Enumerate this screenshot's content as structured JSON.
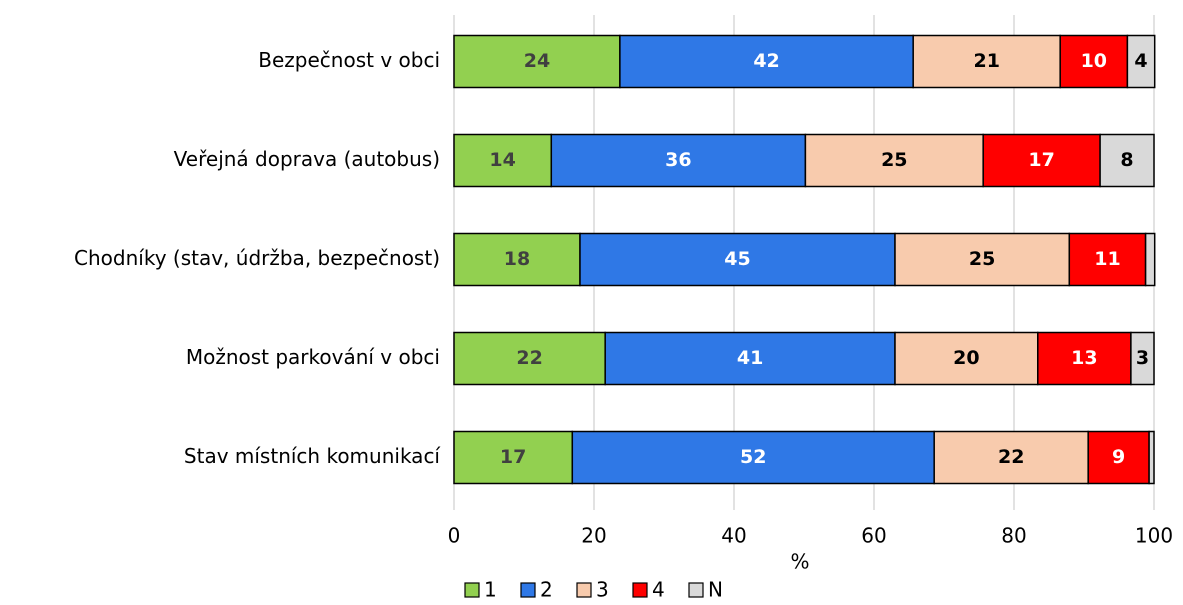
{
  "chart_data": {
    "type": "stacked_barh",
    "categories": [
      "Bezpečnost v obci",
      "Veřejná doprava (autobus)",
      "Chodníky (stav, údržba, bezpečnost)",
      "Možnost parkování v obci",
      "Stav místních komunikací"
    ],
    "series": [
      {
        "name": "1",
        "color": "#92d050",
        "label_color": "#404040",
        "values": [
          23.7,
          13.9,
          18.0,
          21.6,
          16.9
        ],
        "value_labels": [
          24,
          14,
          18,
          22,
          17
        ]
      },
      {
        "name": "2",
        "color": "#2f78e6",
        "label_color": "#ffffff",
        "values": [
          41.9,
          36.3,
          45.0,
          41.4,
          51.7
        ],
        "value_labels": [
          42,
          36,
          45,
          41,
          52
        ]
      },
      {
        "name": "3",
        "color": "#f8cbad",
        "label_color": "#000000",
        "values": [
          21.0,
          25.4,
          24.9,
          20.4,
          22.0
        ],
        "value_labels": [
          21,
          25,
          25,
          20,
          22
        ]
      },
      {
        "name": "4",
        "color": "#ff0000",
        "label_color": "#ffffff",
        "values": [
          9.6,
          16.7,
          10.9,
          13.3,
          8.7
        ],
        "value_labels": [
          10,
          17,
          11,
          13,
          9
        ]
      },
      {
        "name": "N",
        "color": "#d9d9d9",
        "label_color": "#000000",
        "values": [
          3.9,
          7.7,
          1.3,
          3.3,
          0.7
        ],
        "value_labels": [
          4,
          8,
          null,
          3,
          null
        ]
      }
    ],
    "x_label": "%",
    "xlim": [
      0,
      100
    ],
    "xticks": [
      0,
      20,
      40,
      60,
      80,
      100
    ],
    "grid": true,
    "legend": "bottom"
  }
}
